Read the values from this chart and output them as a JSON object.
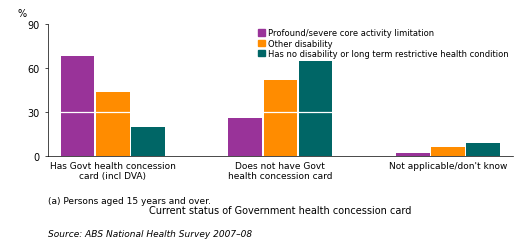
{
  "categories": [
    "Has Govt health concession\ncard (incl DVA)",
    "Does not have Govt\nhealth concession card",
    "Not applicable/don't know"
  ],
  "series": [
    {
      "name": "Profound/severe core activity limitation",
      "color": "#993399",
      "values": [
        68,
        26,
        2
      ]
    },
    {
      "name": "Other disability",
      "color": "#FF8C00",
      "values": [
        44,
        52,
        6
      ]
    },
    {
      "name": "Has no disability or long term restrictive health condition",
      "color": "#006666",
      "values": [
        20,
        65,
        9
      ]
    }
  ],
  "ylabel": "%",
  "xlabel": "Current status of Government health concession card",
  "ylim": [
    0,
    90
  ],
  "yticks": [
    0,
    30,
    60,
    90
  ],
  "footnote1": "(a) Persons aged 15 years and over.",
  "footnote2": "Source: ABS National Health Survey 2007–08",
  "bar_width": 0.18,
  "bgcolor": "#ffffff"
}
